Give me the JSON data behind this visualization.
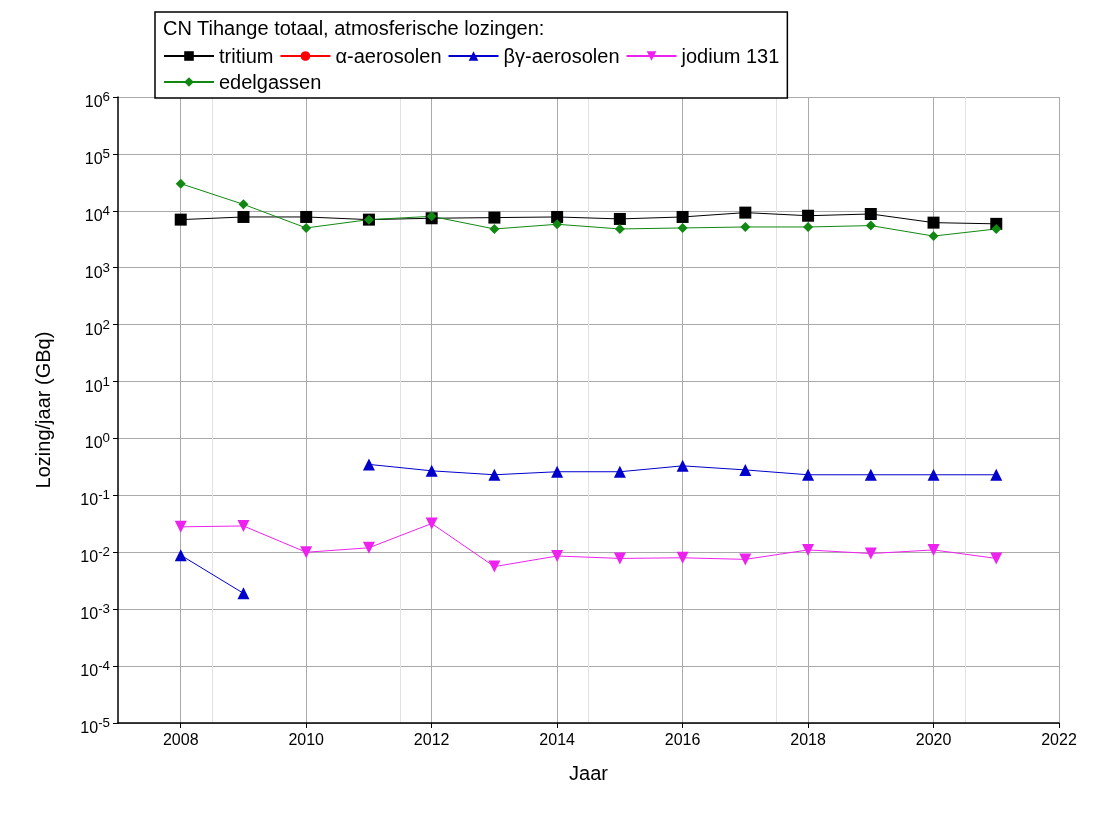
{
  "chart_data": {
    "type": "line",
    "legend_title": "CN Tihange totaal, atmosferische lozingen:",
    "xlabel": "Jaar",
    "ylabel": "Lozing/jaar (GBq)",
    "x": [
      2008,
      2009,
      2010,
      2011,
      2012,
      2013,
      2014,
      2015,
      2016,
      2017,
      2018,
      2019,
      2020,
      2021
    ],
    "series": [
      {
        "name": "tritium",
        "color": "#000000",
        "marker": "square",
        "values": [
          7000,
          7800,
          7800,
          7000,
          7400,
          7600,
          7800,
          7200,
          7800,
          9300,
          8200,
          8800,
          6200,
          5900
        ]
      },
      {
        "name": "α-aerosolen",
        "color": "#ff0000",
        "marker": "circle",
        "values": [
          null,
          null,
          null,
          null,
          null,
          null,
          null,
          null,
          null,
          null,
          null,
          null,
          null,
          null
        ]
      },
      {
        "name": "βγ-aerosolen",
        "color": "#0000cc",
        "marker": "triangle",
        "values": [
          0.0089,
          0.0019,
          null,
          0.35,
          0.27,
          0.23,
          0.26,
          0.26,
          0.33,
          0.28,
          0.23,
          0.23,
          0.23,
          0.23
        ]
      },
      {
        "name": "jodium 131",
        "color": "#ee22ee",
        "marker": "triangle-down",
        "values": [
          0.028,
          0.029,
          0.01,
          0.012,
          0.032,
          0.0056,
          0.0086,
          0.0078,
          0.008,
          0.0075,
          0.011,
          0.0095,
          0.011,
          0.0078
        ]
      },
      {
        "name": "edelgassen",
        "color": "#118811",
        "marker": "diamond",
        "values": [
          30000,
          13000,
          5000,
          7000,
          8000,
          4800,
          5800,
          4800,
          5000,
          5200,
          5200,
          5500,
          3600,
          4800
        ]
      }
    ],
    "log": "y",
    "xlim": [
      2007,
      2022
    ],
    "xticks": [
      2008,
      2010,
      2012,
      2014,
      2016,
      2018,
      2020,
      2022
    ],
    "ylim": [
      1e-05,
      1000000
    ],
    "yticks": [
      {
        "value": 1e-05,
        "label": "10$^{-5}$"
      },
      {
        "value": 0.0001,
        "label": "10$^{-4}$"
      },
      {
        "value": 0.001,
        "label": "10$^{-3}$"
      },
      {
        "value": 0.01,
        "label": "10$^{-2}$"
      },
      {
        "value": 0.1,
        "label": "10$^{-1}$"
      },
      {
        "value": 1,
        "label": "10$^{0}$"
      },
      {
        "value": 10,
        "label": "10$^{1}$"
      },
      {
        "value": 100,
        "label": "10$^{2}$"
      },
      {
        "value": 1000,
        "label": "10$^{3}$"
      },
      {
        "value": 10000,
        "label": "10$^{4}$"
      },
      {
        "value": 100000,
        "label": "10$^{5}$"
      },
      {
        "value": 1000000,
        "label": "10$^{6}$"
      }
    ],
    "grid": true,
    "legend": "top",
    "line_style": "solid"
  }
}
